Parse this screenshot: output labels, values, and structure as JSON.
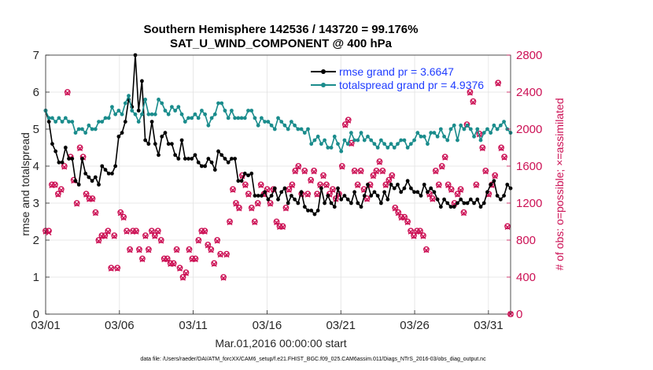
{
  "chart_data": {
    "type": "line",
    "title": "Southern Hemisphere 142536 / 143720 = 99.176%",
    "subtitle": "SAT_U_WIND_COMPONENT @ 400 hPa",
    "xlabel": "Mar.01,2016 00:00:00 start",
    "ylabel": "rmse and totalspread",
    "y2label": "# of obs: o=possible; ×=assimilated",
    "footnote": "data file: /Users/raeder/DAI/ATM_forcXX/CAM6_setup/f.e21.FHIST_BGC.f09_025.CAM6assim.011/Diags_NTrS_2016-03/obs_diag_output.nc",
    "xlim": [
      0,
      31.5
    ],
    "ylim": [
      0,
      7
    ],
    "y2lim": [
      0,
      2800
    ],
    "x_ticks": [
      0,
      5,
      10,
      15,
      20,
      25,
      30
    ],
    "x_tick_labels": [
      "03/01",
      "03/06",
      "03/11",
      "03/16",
      "03/21",
      "03/26",
      "03/31"
    ],
    "y_ticks": [
      0,
      1,
      2,
      3,
      4,
      5,
      6,
      7
    ],
    "y_tick_labels": [
      "0",
      "1",
      "2",
      "3",
      "4",
      "5",
      "6",
      "7"
    ],
    "y2_ticks": [
      0,
      400,
      800,
      1200,
      1600,
      2000,
      2400,
      2800
    ],
    "y2_tick_labels": [
      "0",
      "400",
      "800",
      "1200",
      "1600",
      "2000",
      "2400",
      "2800"
    ],
    "grid": true,
    "legend_position": "top-right",
    "colors": {
      "rmse": "#000000",
      "spread": "#1a8c8c",
      "obs": "#cc1155",
      "legend_text": "#0000ff"
    },
    "series": [
      {
        "name": "rmse grand pr = 3.6647",
        "axis": "left",
        "marker": "dot",
        "color": "#000000",
        "values": [
          5.5,
          5.2,
          4.6,
          4.4,
          4.1,
          4.1,
          4.5,
          4.2,
          4.2,
          3.6,
          3.5,
          4.2,
          3.8,
          3.7,
          3.6,
          3.7,
          3.5,
          4.0,
          3.9,
          3.8,
          3.8,
          4.0,
          4.8,
          4.9,
          5.2,
          5.8,
          5.6,
          7.0,
          5.5,
          6.3,
          4.7,
          4.6,
          5.2,
          4.6,
          4.3,
          4.8,
          4.9,
          4.6,
          4.6,
          4.3,
          4.2,
          4.7,
          4.2,
          4.2,
          4.2,
          4.3,
          4.1,
          4.0,
          4.0,
          4.2,
          4.1,
          3.9,
          4.4,
          4.3,
          4.2,
          4.1,
          4.2,
          4.2,
          3.6,
          3.6,
          3.8,
          3.75,
          3.8,
          3.2,
          3.2,
          3.2,
          3.3,
          3.1,
          3.2,
          3.4,
          3.1,
          3.3,
          3.4,
          3.0,
          3.2,
          3.1,
          3.0,
          3.3,
          2.9,
          2.8,
          2.8,
          2.7,
          2.8,
          3.4,
          3.0,
          3.2,
          3.0,
          2.9,
          3.4,
          3.1,
          3.2,
          3.1,
          3.0,
          3.3,
          3.0,
          2.9,
          3.2,
          3.5,
          3.2,
          3.3,
          3.2,
          3.0,
          3.3,
          3.1,
          3.5,
          3.4,
          3.5,
          3.3,
          3.4,
          3.6,
          3.4,
          3.3,
          3.3,
          3.2,
          3.5,
          3.3,
          3.4,
          3.3,
          3.1,
          2.9,
          3.1,
          3.0,
          2.9,
          2.9,
          3.0,
          3.1,
          3.0,
          3.0,
          3.1,
          3.0,
          3.1,
          2.9,
          3.0,
          3.3,
          3.5,
          3.6,
          3.2,
          3.1,
          3.2,
          3.5,
          3.4
        ]
      },
      {
        "name": "totalspread grand pr = 4.9376",
        "axis": "left",
        "marker": "dot",
        "color": "#1a8c8c",
        "values": [
          5.5,
          5.3,
          5.3,
          5.2,
          5.3,
          5.2,
          5.3,
          5.2,
          5.2,
          4.9,
          5.0,
          5.0,
          4.9,
          5.1,
          5.0,
          5.0,
          5.2,
          5.2,
          5.3,
          5.3,
          5.6,
          5.4,
          5.5,
          5.4,
          5.7,
          5.9,
          5.5,
          5.4,
          5.2,
          5.4,
          5.8,
          5.4,
          5.4,
          5.4,
          5.8,
          5.7,
          5.5,
          5.4,
          5.6,
          5.5,
          5.6,
          5.4,
          5.2,
          5.3,
          5.3,
          5.4,
          5.3,
          5.5,
          5.4,
          5.1,
          5.3,
          5.4,
          5.7,
          5.7,
          5.5,
          5.3,
          5.5,
          5.3,
          5.3,
          5.3,
          5.3,
          5.5,
          5.5,
          5.3,
          5.1,
          5.3,
          5.2,
          5.2,
          5.1,
          5.0,
          5.3,
          5.2,
          5.1,
          5.0,
          5.2,
          5.1,
          5.0,
          5.0,
          4.9,
          5.0,
          4.6,
          4.7,
          4.8,
          4.6,
          4.7,
          4.5,
          4.5,
          4.8,
          4.6,
          4.4,
          4.7,
          4.6,
          4.9,
          4.7,
          4.7,
          4.9,
          4.7,
          4.8,
          4.7,
          4.6,
          4.5,
          4.7,
          4.6,
          4.5,
          4.6,
          4.5,
          4.6,
          4.7,
          4.7,
          4.5,
          4.6,
          4.7,
          4.9,
          4.8,
          4.8,
          4.6,
          4.9,
          4.9,
          4.8,
          5.0,
          4.8,
          4.7,
          5.0,
          5.1,
          4.7,
          5.1,
          5.0,
          5.1,
          5.0,
          4.8,
          5.0,
          4.7,
          4.9,
          5.0,
          4.9,
          5.1,
          5.0,
          5.1,
          5.2,
          5.0,
          4.9
        ]
      },
      {
        "name": "possible",
        "axis": "right",
        "marker": "circle",
        "color": "#cc1155",
        "values": [
          900,
          900,
          1400,
          1400,
          1300,
          1350,
          1600,
          2400,
          1700,
          1450,
          1200,
          1800,
          1700,
          1300,
          1250,
          1250,
          1100,
          800,
          850,
          850,
          900,
          500,
          850,
          500,
          1100,
          1050,
          900,
          700,
          900,
          900,
          700,
          600,
          850,
          700,
          900,
          850,
          900,
          800,
          600,
          600,
          550,
          550,
          700,
          500,
          400,
          450,
          700,
          600,
          600,
          800,
          900,
          900,
          750,
          700,
          550,
          800,
          650,
          400,
          650,
          1000,
          1350,
          1200,
          1150,
          1500,
          1400,
          1300,
          1150,
          1000,
          1200,
          1400,
          1300,
          1350,
          1200,
          1350,
          1000,
          950,
          950,
          1150,
          1350,
          1400,
          1550,
          1600,
          1300,
          1550,
          1300,
          1450,
          1550,
          1300,
          1400,
          1500,
          1400,
          1300,
          1350,
          1250,
          1300,
          1600,
          2050,
          2100,
          1850,
          1550,
          1400,
          1550,
          1350,
          1250,
          1400,
          1500,
          1550,
          1650,
          1550,
          1400,
          1450,
          1500,
          1150,
          1100,
          1050,
          1050,
          1000,
          900,
          850,
          900,
          900,
          850,
          700,
          1300,
          1250,
          1550,
          1400,
          1600,
          1700,
          1400,
          1350,
          1200,
          1300,
          1350,
          1100,
          2050,
          2400,
          2300,
          1400,
          1950,
          1800,
          1550,
          1300,
          1400,
          1500,
          2500,
          1800,
          1700,
          950,
          0
        ]
      },
      {
        "name": "assimilated",
        "axis": "right",
        "marker": "x",
        "color": "#cc1155",
        "values": [
          890,
          880,
          1390,
          1395,
          1290,
          1340,
          1590,
          2390,
          1690,
          1440,
          1190,
          1790,
          1690,
          1290,
          1240,
          1240,
          1090,
          790,
          840,
          840,
          890,
          490,
          840,
          490,
          1090,
          1040,
          890,
          690,
          890,
          890,
          690,
          590,
          840,
          690,
          890,
          840,
          890,
          790,
          590,
          590,
          540,
          540,
          690,
          490,
          390,
          440,
          690,
          590,
          590,
          790,
          890,
          890,
          740,
          690,
          540,
          790,
          640,
          390,
          640,
          990,
          1340,
          1190,
          1140,
          1490,
          1390,
          1290,
          1140,
          990,
          1190,
          1390,
          1290,
          1340,
          1190,
          1340,
          990,
          940,
          940,
          1140,
          1340,
          1390,
          1540,
          1590,
          1290,
          1540,
          1290,
          1440,
          1540,
          1290,
          1390,
          1490,
          1390,
          1290,
          1340,
          1240,
          1290,
          1590,
          2040,
          2090,
          1840,
          1540,
          1390,
          1540,
          1340,
          1240,
          1390,
          1490,
          1540,
          1640,
          1540,
          1390,
          1440,
          1490,
          1140,
          1090,
          1040,
          1040,
          990,
          890,
          840,
          890,
          890,
          840,
          690,
          1290,
          1240,
          1540,
          1390,
          1590,
          1690,
          1390,
          1340,
          1190,
          1290,
          1340,
          1090,
          2040,
          2390,
          2290,
          1390,
          1940,
          1790,
          1540,
          1290,
          1390,
          1490,
          2490,
          1790,
          1690,
          940,
          0
        ]
      }
    ]
  }
}
